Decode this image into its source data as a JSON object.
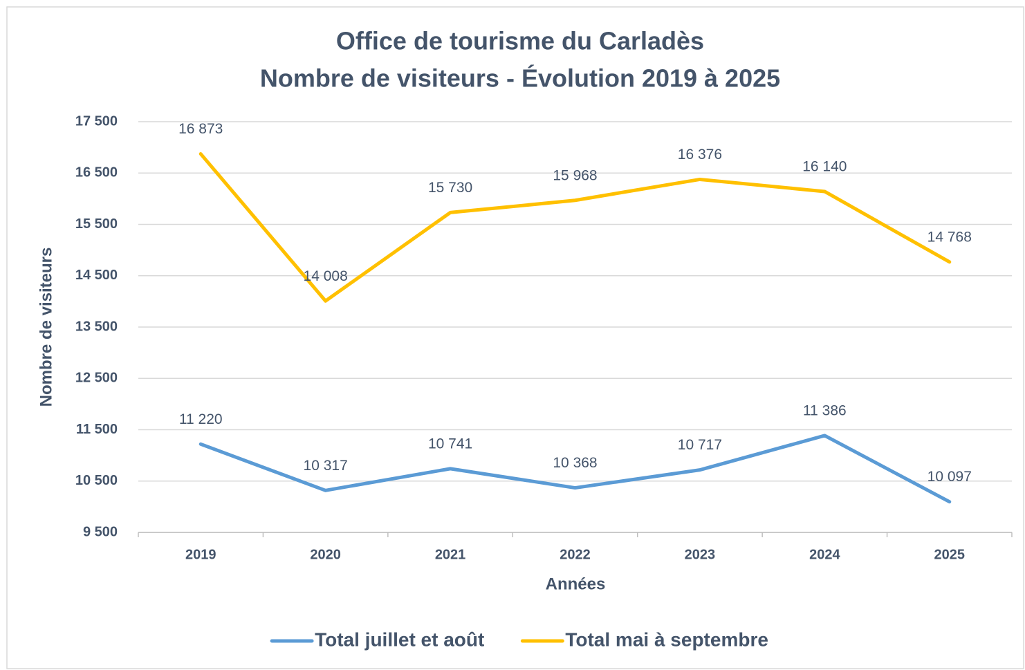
{
  "chart_data": {
    "type": "line",
    "title": [
      "Office de tourisme du Carladès",
      "Nombre de visiteurs - Évolution 2019 à 2025"
    ],
    "x_label": "Années",
    "y_label": "Nombre de visiteurs",
    "categories": [
      "2019",
      "2020",
      "2021",
      "2022",
      "2023",
      "2024",
      "2025"
    ],
    "series": [
      {
        "name": "Total juillet et août",
        "color": "#5b9bd5",
        "values": [
          11220,
          10317,
          10741,
          10368,
          10717,
          11386,
          10097
        ],
        "value_labels": [
          "11 220",
          "10 317",
          "10 741",
          "10 368",
          "10 717",
          "11 386",
          "10 097"
        ]
      },
      {
        "name": "Total mai à septembre",
        "color": "#ffc000",
        "values": [
          16873,
          14008,
          15730,
          15968,
          16376,
          16140,
          14768
        ],
        "value_labels": [
          "16 873",
          "14 008",
          "15 730",
          "15 968",
          "16 376",
          "16 140",
          "14 768"
        ]
      }
    ],
    "ylim": [
      9500,
      17500
    ],
    "yticks": [
      {
        "value": 9500,
        "label": "9 500"
      },
      {
        "value": 10500,
        "label": "10 500"
      },
      {
        "value": 11500,
        "label": "11 500"
      },
      {
        "value": 12500,
        "label": "12 500"
      },
      {
        "value": 13500,
        "label": "13 500"
      },
      {
        "value": 14500,
        "label": "14 500"
      },
      {
        "value": 15500,
        "label": "15 500"
      },
      {
        "value": 16500,
        "label": "16 500"
      },
      {
        "value": 17500,
        "label": "17 500"
      }
    ],
    "grid": true,
    "legend": "bottom"
  }
}
